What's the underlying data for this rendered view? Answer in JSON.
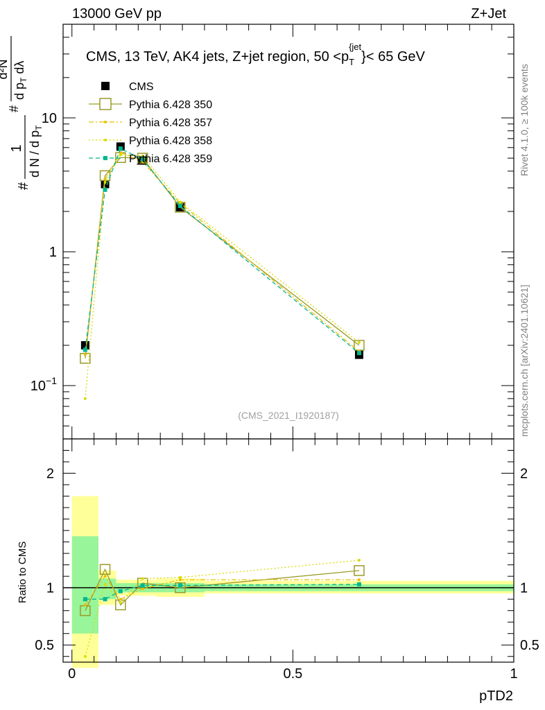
{
  "header": {
    "left": "13000 GeV pp",
    "right": "Z+Jet"
  },
  "side_labels": {
    "rivet": "Rivet 4.1.0, ≥ 100k events",
    "mcplots": "mcplots.cern.ch [arXiv:2401.10621]"
  },
  "chart_data": [
    {
      "type": "line",
      "panel": "main",
      "title": "CMS, 13 TeV, AK4 jets, Z+jet region, 50 <p_T^{jet}< 65 GeV",
      "title_parts": {
        "pre": "CMS, 13 TeV, AK4 jets, Z+jet region, 50 <p",
        "sub": "T",
        "sup": "{jet",
        "post": "}< 65 GeV"
      },
      "ylabel_parts": {
        "frac1_num": "1",
        "frac1_den": "d N / d p",
        "frac1_den_sub": "T",
        "frac2_num": "d²N",
        "frac2_den": "d p",
        "frac2_den_sub": "T",
        "frac2_den_tail": " dλ",
        "hash": "#"
      },
      "watermark": "(CMS_2021_I1920187)",
      "yscale": "log",
      "ylim": [
        0.04,
        50
      ],
      "xlim": [
        -0.02,
        1.0
      ],
      "y_ticks": [
        {
          "value": 0.1,
          "label": "10",
          "sup": "−1"
        },
        {
          "value": 1,
          "label": "1",
          "sup": ""
        },
        {
          "value": 10,
          "label": "10",
          "sup": ""
        }
      ],
      "legend_position": "top-left",
      "x": [
        0.03,
        0.075,
        0.11,
        0.16,
        0.245,
        0.65
      ],
      "series": [
        {
          "name": "CMS",
          "color": "#000000",
          "marker": "square-filled",
          "dash": "none",
          "values": [
            0.2,
            3.2,
            6.1,
            4.8,
            2.15,
            0.17
          ]
        },
        {
          "name": "Pythia 6.428 350",
          "color": "#9a9a28",
          "marker": "square-open",
          "dash": "solid",
          "values": [
            0.16,
            3.7,
            5.05,
            5.0,
            2.15,
            0.2
          ]
        },
        {
          "name": "Pythia 6.428 357",
          "color": "#e8c000",
          "marker": "dot",
          "dash": "dashdot",
          "values": [
            0.17,
            3.5,
            5.5,
            4.7,
            2.3,
            0.18
          ]
        },
        {
          "name": "Pythia 6.428 358",
          "color": "#d8dc00",
          "marker": "dot",
          "dash": "dotted",
          "values": [
            0.08,
            3.3,
            5.3,
            5.2,
            2.35,
            0.21
          ]
        },
        {
          "name": "Pythia 6.428 359",
          "color": "#00b890",
          "marker": "small-square",
          "dash": "dashed",
          "values": [
            0.185,
            2.9,
            5.9,
            4.9,
            2.2,
            0.175
          ]
        }
      ]
    },
    {
      "type": "line",
      "panel": "ratio",
      "ylabel": "Ratio to CMS",
      "xlabel": "pTD2",
      "ylim": [
        0.35,
        2.3
      ],
      "xlim": [
        -0.02,
        1.0
      ],
      "y_ticks": [
        {
          "value": 0.5,
          "label": "0.5"
        },
        {
          "value": 1,
          "label": "1"
        },
        {
          "value": 2,
          "label": "2"
        }
      ],
      "x_ticks": [
        {
          "value": 0,
          "label": "0"
        },
        {
          "value": 0.5,
          "label": "0.5"
        },
        {
          "value": 1,
          "label": "1"
        }
      ],
      "x": [
        0.03,
        0.075,
        0.11,
        0.16,
        0.245,
        0.65
      ],
      "uncertainty_bands": [
        {
          "x_range": [
            0.0,
            0.06
          ],
          "stat_sys": [
            0.3,
            1.8
          ],
          "stat": [
            0.6,
            1.45
          ]
        },
        {
          "x_range": [
            0.06,
            0.1
          ],
          "stat_sys": [
            0.85,
            1.15
          ],
          "stat": [
            0.9,
            1.08
          ]
        },
        {
          "x_range": [
            0.1,
            0.19
          ],
          "stat_sys": [
            0.93,
            1.07
          ],
          "stat": [
            0.96,
            1.04
          ]
        },
        {
          "x_range": [
            0.19,
            0.3
          ],
          "stat_sys": [
            0.92,
            1.08
          ],
          "stat": [
            0.96,
            1.04
          ]
        },
        {
          "x_range": [
            0.3,
            1.0
          ],
          "stat_sys": [
            0.95,
            1.06
          ],
          "stat": [
            0.97,
            1.03
          ]
        }
      ],
      "series": [
        {
          "name": "Pythia 6.428 350",
          "color": "#9a9a28",
          "values": [
            0.8,
            1.16,
            0.85,
            1.04,
            1.0,
            1.15
          ]
        },
        {
          "name": "Pythia 6.428 357",
          "color": "#e8c000",
          "values": [
            0.85,
            1.1,
            0.9,
            0.99,
            1.07,
            1.07
          ]
        },
        {
          "name": "Pythia 6.428 358",
          "color": "#d8dc00",
          "values": [
            0.4,
            1.03,
            0.87,
            1.08,
            1.09,
            1.24
          ]
        },
        {
          "name": "Pythia 6.428 359",
          "color": "#00b890",
          "values": [
            0.9,
            0.9,
            0.97,
            1.02,
            1.02,
            1.03
          ]
        }
      ]
    }
  ]
}
